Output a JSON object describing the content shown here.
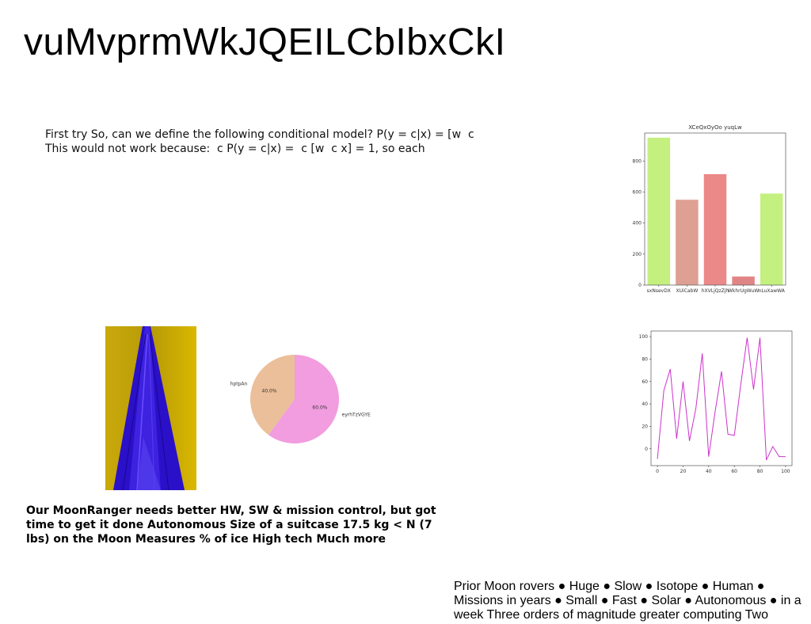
{
  "slide": {
    "title": "vuMvprmWkJQEILCbIbxCkI",
    "para1_lines": [
      "First try So, can we define the following conditional model? P(y = c|x) = \u0018[w \u0018 c",
      "This would not work because: \u0018 c P(y = c|x) = \u0018 c \u0018[w \u0018 c x] \u0018= 1, so each"
    ],
    "para2": "Our MoonRanger needs better HW, SW & mission control, but got time to get it done Autonomous Size of a suitcase 17.5 kg < N (7 lbs) on the Moon Measures % of ice High tech Much more",
    "para3": "Prior Moon rovers ● Huge ● Slow ● Isotope ● Human ● Missions in years ● Small ● Fast ● Solar ● Autonomous ● in a week Three orders of magnitude greater computing Two"
  },
  "chart_data": [
    {
      "type": "bar",
      "title": "XCeQxOyOo yuqLw",
      "categories": [
        "sxNsevDX",
        "XUiCabW",
        "hXVLjQzZjh",
        "WkhrUgWuW",
        "nLuXawWA"
      ],
      "values": [
        950,
        550,
        715,
        55,
        590
      ],
      "colors": [
        "#c3f07f",
        "#dea093",
        "#eb8888",
        "#e08585",
        "#c3f07f"
      ],
      "ylim": [
        0,
        980
      ],
      "yticks": [
        0,
        200,
        400,
        600,
        800
      ]
    },
    {
      "type": "pie",
      "labels": [
        "hptpAn",
        "eyrhTzVGYE"
      ],
      "values": [
        40.0,
        60.0
      ],
      "autopct": [
        "40.0%",
        "60.0%"
      ],
      "colors": [
        "#ebbf99",
        "#f19ddf"
      ]
    },
    {
      "type": "line",
      "color": "#cc33cc",
      "x": [
        0,
        5,
        10,
        15,
        20,
        25,
        30,
        35,
        40,
        45,
        50,
        55,
        60,
        65,
        70,
        75,
        80,
        85,
        90,
        95,
        100
      ],
      "y": [
        -9,
        52,
        71,
        9,
        60,
        7,
        36,
        85,
        -7,
        33,
        69,
        13,
        12,
        57,
        99,
        53,
        99,
        -10,
        2,
        -7,
        -7
      ],
      "xlim": [
        -5,
        105
      ],
      "ylim": [
        -15,
        105
      ],
      "xticks": [
        0,
        20,
        40,
        60,
        80,
        100
      ],
      "yticks": [
        0,
        20,
        40,
        60,
        80,
        100
      ]
    }
  ]
}
